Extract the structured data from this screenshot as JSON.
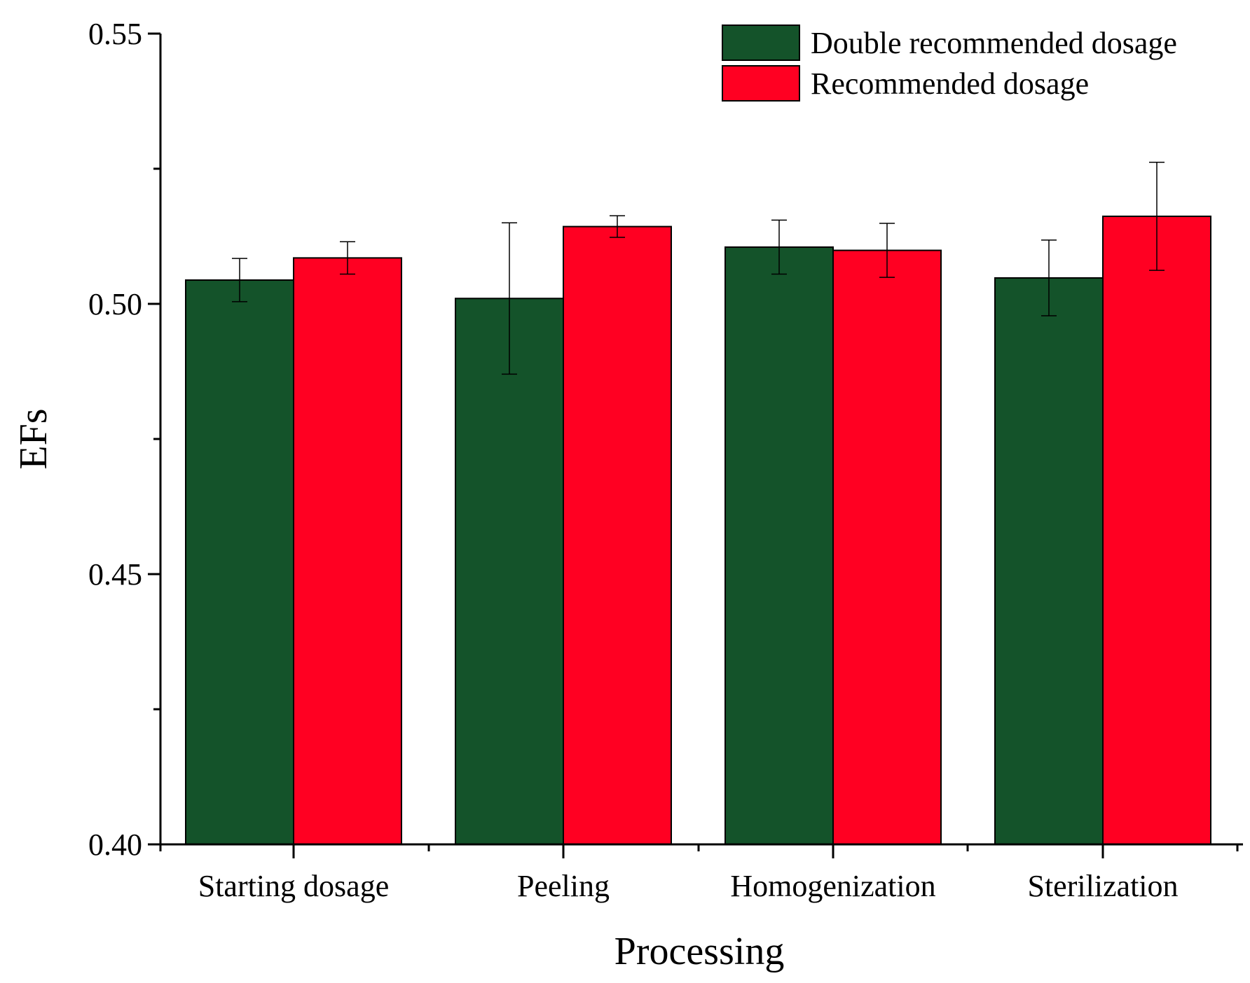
{
  "chart_data": {
    "type": "bar",
    "title": "",
    "xlabel": "Processing",
    "ylabel": "EFs",
    "ylim": [
      0.4,
      0.55
    ],
    "y_ticks": [
      {
        "value": 0.4,
        "label": "0.40"
      },
      {
        "value": 0.45,
        "label": "0.45"
      },
      {
        "value": 0.5,
        "label": "0.50"
      },
      {
        "value": 0.55,
        "label": "0.55"
      }
    ],
    "y_minor_ticks": [
      0.425,
      0.475,
      0.525
    ],
    "categories": [
      "Starting dosage",
      "Peeling",
      "Homogenization",
      "Sterilization"
    ],
    "series": [
      {
        "name": "Double recommended dosage",
        "color": "#14532a",
        "values": [
          0.5044,
          0.501,
          0.5105,
          0.5048
        ],
        "errors": [
          0.004,
          0.014,
          0.005,
          0.007
        ]
      },
      {
        "name": "Recommended dosage",
        "color": "#ff0022",
        "values": [
          0.5085,
          0.5143,
          0.5099,
          0.5162
        ],
        "errors": [
          0.003,
          0.002,
          0.005,
          0.01
        ]
      }
    ],
    "legend_position": "top-right",
    "grid": false
  }
}
